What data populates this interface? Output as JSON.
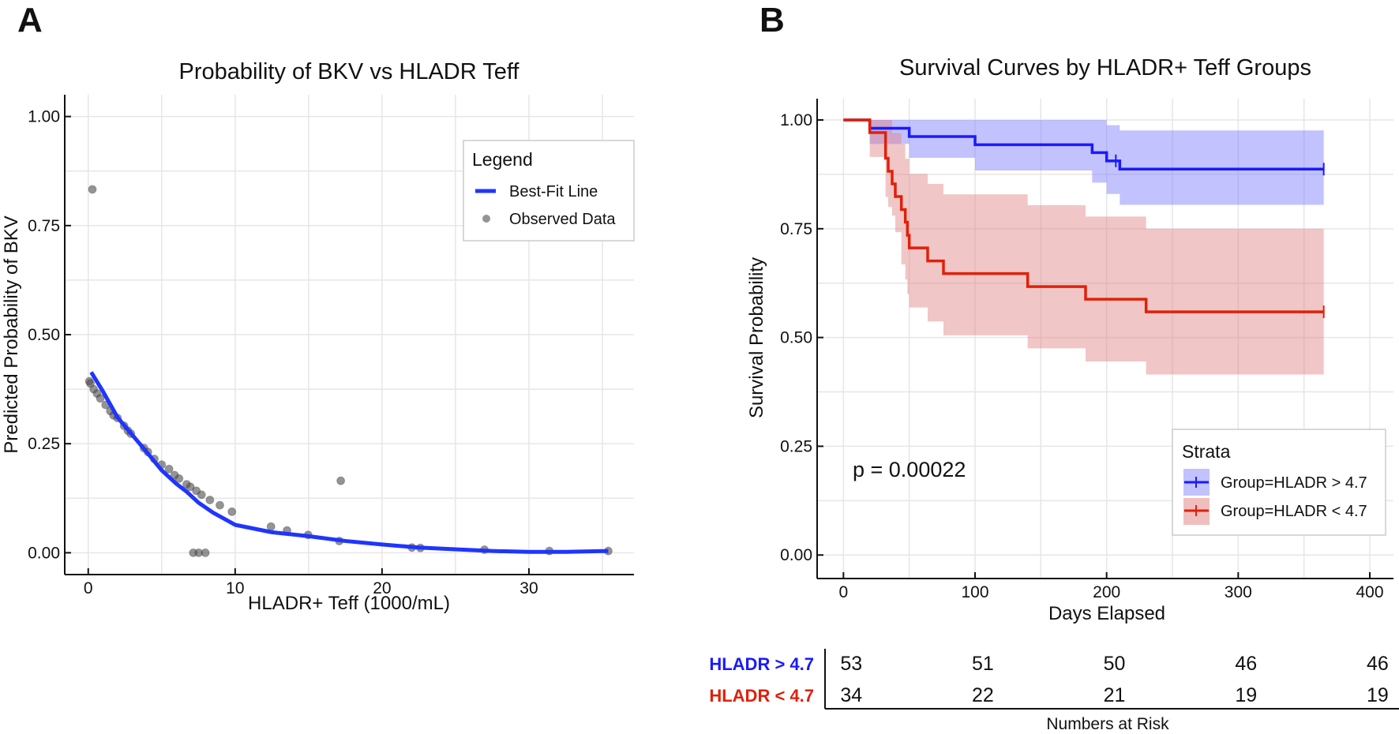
{
  "panel_labels": {
    "a": "A",
    "b": "B"
  },
  "chart_data": [
    {
      "type": "scatter",
      "title": "Probability of BKV vs HLADR Teff",
      "xlabel": "HLADR+ Teff (1000/mL)",
      "ylabel": "Predicted Probability of BKV",
      "xlim": [
        -1.6,
        37.15
      ],
      "ylim": [
        -0.05,
        1.05
      ],
      "xticks": [
        {
          "v": 0,
          "label": "0"
        },
        {
          "v": 10,
          "label": "10"
        },
        {
          "v": 20,
          "label": "20"
        },
        {
          "v": 30,
          "label": "30"
        }
      ],
      "yticks": [
        {
          "v": 0,
          "label": "0.00"
        },
        {
          "v": 0.25,
          "label": "0.25"
        },
        {
          "v": 0.5,
          "label": "0.50"
        },
        {
          "v": 0.75,
          "label": "0.75"
        },
        {
          "v": 1,
          "label": "1.00"
        }
      ],
      "grid": true,
      "legend": {
        "title": "Legend",
        "placement": "top-right",
        "entries": [
          "Best-Fit Line",
          "Observed Data"
        ]
      },
      "series": [
        {
          "name": "Best-Fit Line",
          "type": "line",
          "color": "#1f35ff",
          "points": [
            [
              0.2,
              0.414
            ],
            [
              1,
              0.37
            ],
            [
              2,
              0.31
            ],
            [
              3,
              0.27
            ],
            [
              4,
              0.23
            ],
            [
              5,
              0.189
            ],
            [
              6,
              0.158
            ],
            [
              6.7,
              0.14
            ],
            [
              7.5,
              0.115
            ],
            [
              8.5,
              0.092
            ],
            [
              10,
              0.064
            ],
            [
              12.5,
              0.047
            ],
            [
              15,
              0.038
            ],
            [
              17.5,
              0.027
            ],
            [
              20,
              0.019
            ],
            [
              22.5,
              0.012
            ],
            [
              25,
              0.008
            ],
            [
              27.5,
              0.004
            ],
            [
              30,
              0.002
            ],
            [
              32.5,
              0.002
            ],
            [
              35.4,
              0.004
            ]
          ]
        },
        {
          "name": "Observed Data",
          "type": "scatter",
          "color": "#4d4d4d",
          "points": [
            [
              0.07,
              0.393
            ],
            [
              0.15,
              0.388
            ],
            [
              0.28,
              0.833
            ],
            [
              0.37,
              0.375
            ],
            [
              0.6,
              0.365
            ],
            [
              0.82,
              0.354
            ],
            [
              1.18,
              0.339
            ],
            [
              1.5,
              0.325
            ],
            [
              1.72,
              0.315
            ],
            [
              1.99,
              0.309
            ],
            [
              2.44,
              0.291
            ],
            [
              2.7,
              0.28
            ],
            [
              2.9,
              0.273
            ],
            [
              3.79,
              0.24
            ],
            [
              4.06,
              0.231
            ],
            [
              4.5,
              0.215
            ],
            [
              5.0,
              0.202
            ],
            [
              5.5,
              0.192
            ],
            [
              5.88,
              0.178
            ],
            [
              6.18,
              0.17
            ],
            [
              6.7,
              0.157
            ],
            [
              6.95,
              0.151
            ],
            [
              7.15,
              0.0
            ],
            [
              7.36,
              0.142
            ],
            [
              7.52,
              0.0
            ],
            [
              7.71,
              0.133
            ],
            [
              7.97,
              0.0
            ],
            [
              8.28,
              0.121
            ],
            [
              8.96,
              0.109
            ],
            [
              9.78,
              0.094
            ],
            [
              12.44,
              0.06
            ],
            [
              13.53,
              0.051
            ],
            [
              14.97,
              0.041
            ],
            [
              17.09,
              0.027
            ],
            [
              17.19,
              0.165
            ],
            [
              22.03,
              0.012
            ],
            [
              22.61,
              0.011
            ],
            [
              26.97,
              0.007
            ],
            [
              31.39,
              0.004
            ],
            [
              35.4,
              0.004
            ]
          ]
        }
      ]
    },
    {
      "type": "line",
      "title": "Survival Curves by HLADR+ Teff Groups",
      "xlabel": "Days Elapsed",
      "ylabel": "Survival Probability",
      "xlim": [
        -20,
        418
      ],
      "ylim": [
        -0.054,
        1.049
      ],
      "xticks": [
        {
          "v": 0,
          "label": "0"
        },
        {
          "v": 100,
          "label": "100"
        },
        {
          "v": 200,
          "label": "200"
        },
        {
          "v": 300,
          "label": "300"
        },
        {
          "v": 400,
          "label": "400"
        }
      ],
      "yticks": [
        {
          "v": 0,
          "label": "0.00"
        },
        {
          "v": 0.25,
          "label": "0.25"
        },
        {
          "v": 0.5,
          "label": "0.50"
        },
        {
          "v": 0.75,
          "label": "0.75"
        },
        {
          "v": 1,
          "label": "1.00"
        }
      ],
      "grid": true,
      "annotation": "p = 0.00022",
      "legend": {
        "title": "Strata",
        "placement": "bottom-right",
        "entries": [
          "Group=HLADR > 4.7",
          "Group=HLADR < 4.7"
        ]
      },
      "series": [
        {
          "name": "Group=HLADR > 4.7",
          "color": "#1a1aff",
          "band_color": "#7878ff",
          "times": [
            0,
            20,
            50,
            100,
            189,
            200,
            210
          ],
          "survival": [
            1,
            0.981,
            0.962,
            0.943,
            0.925,
            0.906,
            0.887
          ],
          "ci_lower": [
            1,
            0.945,
            0.913,
            0.884,
            0.856,
            0.83,
            0.805
          ],
          "ci_upper": [
            1,
            1,
            1,
            1,
            1,
            0.988,
            0.976
          ],
          "end": 365,
          "censored": [
            207,
            365
          ]
        },
        {
          "name": "Group=HLADR < 4.7",
          "color": "#e0200a",
          "band_color": "#e08080",
          "times": [
            0,
            20,
            32,
            34,
            37,
            39.4,
            44,
            47,
            48.6,
            50,
            64,
            76,
            140,
            184,
            230
          ],
          "survival": [
            1,
            0.971,
            0.912,
            0.882,
            0.853,
            0.824,
            0.794,
            0.765,
            0.735,
            0.706,
            0.676,
            0.647,
            0.617,
            0.588,
            0.559
          ],
          "ci_lower": [
            1,
            0.915,
            0.823,
            0.8,
            0.78,
            0.742,
            0.668,
            0.633,
            0.6,
            0.569,
            0.537,
            0.505,
            0.475,
            0.445,
            0.415
          ],
          "ci_upper": [
            1,
            1,
            1,
            1,
            0.97,
            0.97,
            0.945,
            0.911,
            0.911,
            0.876,
            0.853,
            0.829,
            0.804,
            0.778,
            0.75
          ],
          "end": 365,
          "censored": [
            365
          ]
        }
      ],
      "risk_table": {
        "title": "Numbers at Risk",
        "times": [
          0,
          100,
          200,
          300,
          400
        ],
        "rows": [
          {
            "label": "HLADR > 4.7",
            "color": "#1a1aff",
            "values": [
              "53",
              "51",
              "50",
              "46",
              "46"
            ]
          },
          {
            "label": "HLADR < 4.7",
            "color": "#e0200a",
            "values": [
              "34",
              "22",
              "21",
              "19",
              "19"
            ]
          }
        ]
      }
    }
  ]
}
